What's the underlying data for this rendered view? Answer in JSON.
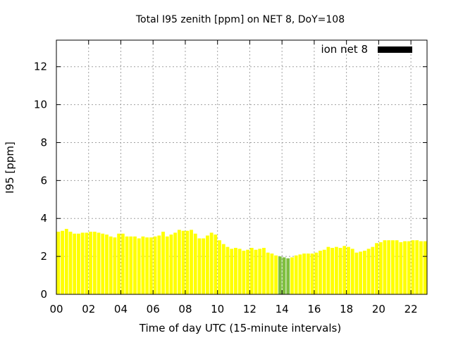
{
  "chart_data": {
    "type": "bar",
    "title": "Total I95 zenith [ppm] on NET 8, DoY=108",
    "xlabel": "Time of day UTC (15-minute intervals)",
    "ylabel": "I95 [ppm]",
    "xlim": [
      0,
      23
    ],
    "ylim": [
      0,
      13.4
    ],
    "x_ticks": [
      0,
      2,
      4,
      6,
      8,
      10,
      12,
      14,
      16,
      18,
      20,
      22
    ],
    "x_tick_labels": [
      "00",
      "02",
      "04",
      "06",
      "08",
      "10",
      "12",
      "14",
      "16",
      "18",
      "20",
      "22"
    ],
    "y_ticks": [
      0,
      2,
      4,
      6,
      8,
      10,
      12
    ],
    "y_tick_labels": [
      "0",
      "2",
      "4",
      "6",
      "8",
      "10",
      "12"
    ],
    "grid": true,
    "legend": {
      "label": "ion net 8",
      "position": "top-right",
      "color": "#000000"
    },
    "bar_interval_hours": 0.25,
    "colors": {
      "default": "#ffff00",
      "highlight": "#7fbf3f",
      "legend_swatch": "#000000"
    },
    "highlighted_times": [
      13.75,
      14.0,
      14.25
    ],
    "series": [
      {
        "color": "#ffff00",
        "x": [
          0,
          0.25,
          0.5,
          0.75,
          1,
          1.25,
          1.5,
          1.75,
          2,
          2.25,
          2.5,
          2.75,
          3,
          3.25,
          3.5,
          3.75,
          4,
          4.25,
          4.5,
          4.75,
          5,
          5.25,
          5.5,
          5.75,
          6,
          6.25,
          6.5,
          6.75,
          7,
          7.25,
          7.5,
          7.75,
          8,
          8.25,
          8.5,
          8.75,
          9,
          9.25,
          9.5,
          9.75,
          10,
          10.25,
          10.5,
          10.75,
          11,
          11.25,
          11.5,
          11.75,
          12,
          12.25,
          12.5,
          12.75,
          13,
          13.25,
          13.5,
          13.75,
          14,
          14.25,
          14.5,
          14.75,
          15,
          15.25,
          15.5,
          15.75,
          16,
          16.25,
          16.5,
          16.75,
          17,
          17.25,
          17.5,
          17.75,
          18,
          18.25,
          18.5,
          18.75,
          19,
          19.25,
          19.5,
          19.75,
          20,
          20.25,
          20.5,
          20.75,
          21,
          21.25,
          21.5,
          21.75,
          22,
          22.25,
          22.5,
          22.75
        ],
        "values": [
          3.3,
          3.35,
          3.45,
          3.3,
          3.2,
          3.2,
          3.25,
          3.25,
          3.3,
          3.3,
          3.25,
          3.2,
          3.15,
          3.05,
          3.0,
          3.2,
          3.2,
          3.05,
          3.05,
          3.05,
          2.95,
          3.05,
          3.0,
          3.0,
          3.05,
          3.1,
          3.3,
          3.05,
          3.15,
          3.25,
          3.4,
          3.35,
          3.35,
          3.4,
          3.2,
          2.95,
          2.95,
          3.1,
          3.25,
          3.15,
          2.85,
          2.65,
          2.5,
          2.4,
          2.45,
          2.4,
          2.3,
          2.35,
          2.45,
          2.35,
          2.4,
          2.45,
          2.2,
          2.15,
          2.05,
          2.0,
          1.95,
          1.9,
          1.95,
          2.05,
          2.1,
          2.15,
          2.15,
          2.15,
          2.2,
          2.3,
          2.35,
          2.5,
          2.45,
          2.5,
          2.45,
          2.55,
          2.5,
          2.4,
          2.2,
          2.25,
          2.3,
          2.4,
          2.5,
          2.7,
          2.75,
          2.85,
          2.85,
          2.85,
          2.85,
          2.75,
          2.8,
          2.8,
          2.85,
          2.85,
          2.8,
          2.8
        ]
      }
    ]
  }
}
